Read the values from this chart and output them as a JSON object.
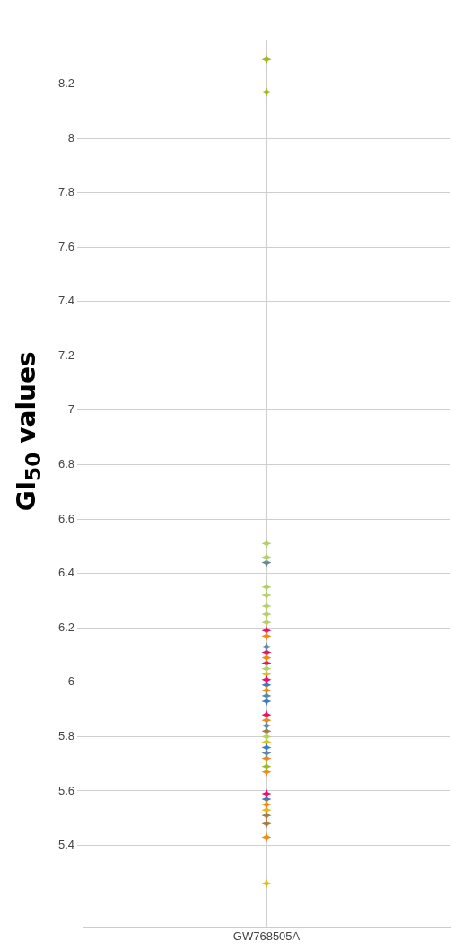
{
  "chart_data": {
    "type": "scatter",
    "ylabel": "GI$_{50}$ values",
    "categories": [
      "GW768505A"
    ],
    "ylim": [
      5.1,
      8.36
    ],
    "yticks": [
      5.4,
      5.6,
      5.8,
      6,
      6.2,
      6.4,
      6.6,
      6.8,
      7,
      7.2,
      7.4,
      7.6,
      7.8,
      8,
      8.2
    ],
    "grid": true,
    "marker": "star",
    "series": [
      {
        "color": "#9dba2a",
        "x": [
          "GW768505A",
          "GW768505A",
          "GW768505A"
        ],
        "values": [
          8.29,
          8.17,
          5.69
        ]
      },
      {
        "color": "#b5d06a",
        "x": [
          "GW768505A",
          "GW768505A",
          "GW768505A",
          "GW768505A",
          "GW768505A",
          "GW768505A",
          "GW768505A",
          "GW768505A",
          "GW768505A"
        ],
        "values": [
          6.51,
          6.46,
          6.35,
          6.32,
          6.28,
          6.25,
          6.22,
          6.05,
          5.8
        ]
      },
      {
        "color": "#5f8aa0",
        "x": [
          "GW768505A",
          "GW768505A",
          "GW768505A",
          "GW768505A",
          "GW768505A"
        ],
        "values": [
          6.44,
          6.13,
          5.95,
          5.84,
          5.74
        ]
      },
      {
        "color": "#f08a18",
        "x": [
          "GW768505A",
          "GW768505A",
          "GW768505A",
          "GW768505A",
          "GW768505A",
          "GW768505A",
          "GW768505A",
          "GW768505A"
        ],
        "values": [
          6.17,
          6.09,
          5.97,
          5.86,
          5.72,
          5.67,
          5.55,
          5.43
        ]
      },
      {
        "color": "#e8106a",
        "x": [
          "GW768505A",
          "GW768505A",
          "GW768505A",
          "GW768505A",
          "GW768505A",
          "GW768505A"
        ],
        "values": [
          6.19,
          6.11,
          6.07,
          6.01,
          5.88,
          5.59
        ]
      },
      {
        "color": "#3a7cc0",
        "x": [
          "GW768505A",
          "GW768505A",
          "GW768505A",
          "GW768505A"
        ],
        "values": [
          5.99,
          5.93,
          5.76,
          5.57
        ]
      },
      {
        "color": "#a87a48",
        "x": [
          "GW768505A",
          "GW768505A",
          "GW768505A"
        ],
        "values": [
          5.82,
          5.51,
          5.48
        ]
      },
      {
        "color": "#e0c018",
        "x": [
          "GW768505A",
          "GW768505A",
          "GW768505A",
          "GW768505A"
        ],
        "values": [
          6.03,
          5.78,
          5.53,
          5.26
        ]
      }
    ]
  }
}
